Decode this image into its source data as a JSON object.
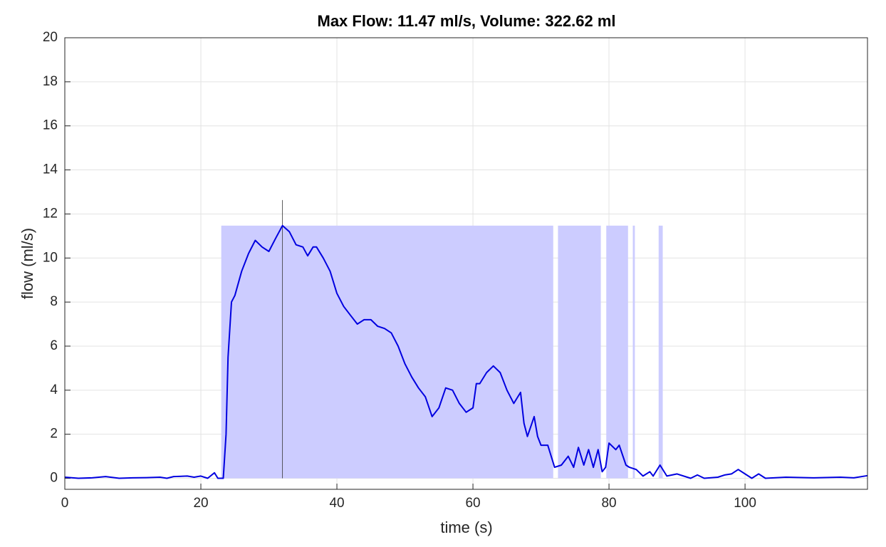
{
  "chart_data": {
    "type": "line",
    "title": "Max Flow: 11.47 ml/s, Volume: 322.62 ml",
    "x_label": "time (s)",
    "y_label": "flow (ml/s)",
    "xlim": [
      0,
      118
    ],
    "ylim": [
      -0.5,
      20
    ],
    "xticks": [
      0,
      20,
      40,
      60,
      80,
      100
    ],
    "yticks": [
      0,
      2,
      4,
      6,
      8,
      10,
      12,
      14,
      16,
      18,
      20
    ],
    "grid": true,
    "shaded": {
      "color": "#ccccff",
      "height": 11.47,
      "intervals": [
        [
          23.0,
          71.8
        ],
        [
          72.5,
          78.8
        ],
        [
          79.6,
          82.8
        ],
        [
          83.5,
          83.8
        ],
        [
          87.3,
          87.9
        ]
      ]
    },
    "marker_line": {
      "x": 32,
      "ylim": [
        0,
        12.63
      ],
      "color": "#333333"
    },
    "series": [
      {
        "color": "#0000e0",
        "x": [
          0,
          2,
          4,
          6,
          8,
          10,
          12,
          14,
          15,
          16,
          18,
          19,
          20,
          21,
          22,
          22.5,
          23.3,
          23.7,
          24,
          24.5,
          25,
          26,
          27,
          28,
          29,
          30,
          31,
          32,
          33,
          34,
          35,
          35.7,
          36.5,
          37,
          38,
          39,
          40,
          41,
          42,
          43,
          44,
          45,
          46,
          47,
          48,
          49,
          50,
          51,
          52,
          53,
          54,
          55,
          56,
          57,
          58,
          59,
          60,
          60.5,
          61,
          62,
          63,
          64,
          65,
          66,
          67,
          67.5,
          68,
          69,
          69.5,
          70,
          71,
          72,
          73,
          74,
          74.8,
          75.5,
          76.3,
          77,
          77.7,
          78.4,
          79,
          79.5,
          80,
          81,
          81.5,
          82.5,
          83,
          84,
          85,
          86,
          86.5,
          87.5,
          88.5,
          90,
          92,
          93,
          94,
          96,
          97,
          98,
          99,
          100,
          101,
          102,
          103,
          106,
          110,
          114,
          116,
          118
        ],
        "values": [
          0.05,
          0.0,
          0.02,
          0.08,
          0.0,
          0.02,
          0.03,
          0.05,
          0.0,
          0.08,
          0.1,
          0.05,
          0.1,
          0.0,
          0.25,
          0.0,
          0.0,
          2.0,
          5.5,
          8.0,
          8.3,
          9.4,
          10.2,
          10.8,
          10.5,
          10.3,
          10.9,
          11.47,
          11.2,
          10.6,
          10.5,
          10.1,
          10.5,
          10.5,
          10.0,
          9.4,
          8.4,
          7.8,
          7.4,
          7.0,
          7.2,
          7.2,
          6.9,
          6.8,
          6.6,
          6.0,
          5.2,
          4.6,
          4.1,
          3.7,
          2.8,
          3.2,
          4.1,
          4.0,
          3.4,
          3.0,
          3.2,
          4.3,
          4.3,
          4.8,
          5.1,
          4.8,
          4.0,
          3.4,
          3.9,
          2.5,
          1.9,
          2.8,
          1.9,
          1.5,
          1.5,
          0.5,
          0.6,
          1.0,
          0.5,
          1.4,
          0.6,
          1.3,
          0.5,
          1.3,
          0.3,
          0.5,
          1.6,
          1.3,
          1.5,
          0.6,
          0.5,
          0.4,
          0.1,
          0.3,
          0.1,
          0.6,
          0.1,
          0.2,
          0.0,
          0.15,
          0.0,
          0.05,
          0.15,
          0.2,
          0.4,
          0.2,
          0.0,
          0.2,
          0.0,
          0.05,
          0.02,
          0.05,
          0.02,
          0.12
        ]
      }
    ]
  }
}
